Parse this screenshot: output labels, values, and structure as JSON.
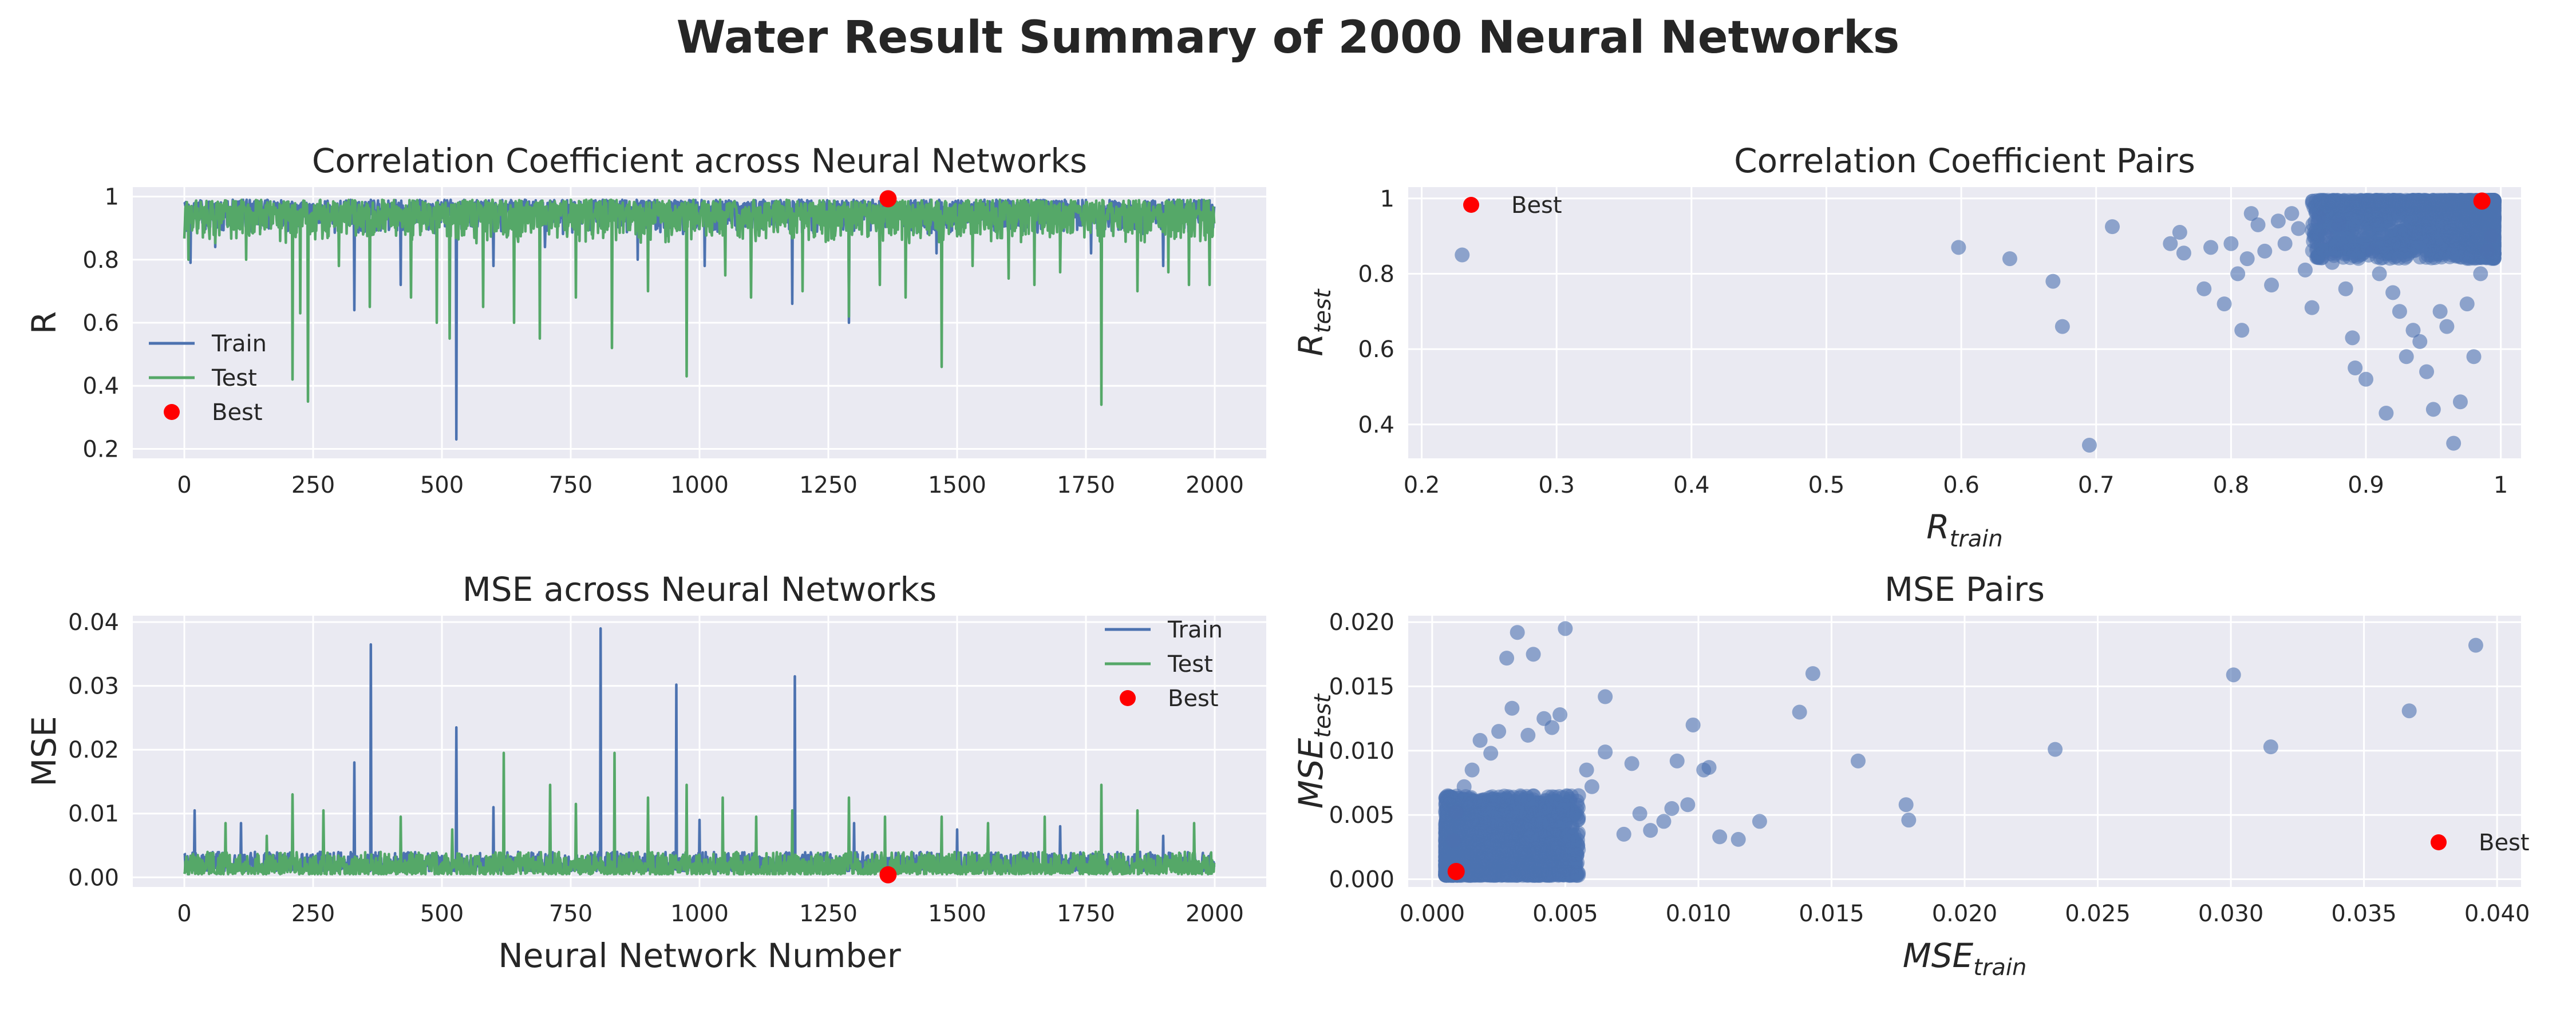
{
  "figure": {
    "suptitle": "Water Result Summary of 2000 Neural Networks"
  },
  "chart_data": [
    {
      "id": "r-line",
      "type": "line",
      "title": "Correlation Coefficient across Neural Networks",
      "xlabel": "",
      "ylabel": "R",
      "xlim": [
        -100,
        2100
      ],
      "ylim": [
        0.17,
        1.03
      ],
      "xticks": [
        0,
        250,
        500,
        750,
        1000,
        1250,
        1500,
        1750,
        2000
      ],
      "yticks": [
        0.2,
        0.4,
        0.6,
        0.8,
        1.0
      ],
      "grid": true,
      "legend": "lower-left",
      "n": 2000,
      "series": [
        {
          "name": "Train",
          "color": "#4c72b0",
          "typical_range": [
            0.88,
            0.99
          ],
          "spikes": [
            [
              12,
              0.79
            ],
            [
              60,
              0.84
            ],
            [
              330,
              0.64
            ],
            [
              420,
              0.72
            ],
            [
              528,
              0.23
            ],
            [
              600,
              0.78
            ],
            [
              700,
              0.84
            ],
            [
              880,
              0.8
            ],
            [
              1010,
              0.78
            ],
            [
              1180,
              0.66
            ],
            [
              1290,
              0.6
            ],
            [
              1460,
              0.82
            ],
            [
              1600,
              0.8
            ],
            [
              1760,
              0.82
            ],
            [
              1900,
              0.78
            ]
          ]
        },
        {
          "name": "Test",
          "color": "#55a868",
          "typical_range": [
            0.85,
            0.99
          ],
          "spikes": [
            [
              8,
              0.8
            ],
            [
              120,
              0.8
            ],
            [
              210,
              0.42
            ],
            [
              225,
              0.63
            ],
            [
              240,
              0.35
            ],
            [
              300,
              0.78
            ],
            [
              360,
              0.65
            ],
            [
              440,
              0.68
            ],
            [
              490,
              0.6
            ],
            [
              515,
              0.55
            ],
            [
              580,
              0.65
            ],
            [
              640,
              0.6
            ],
            [
              690,
              0.55
            ],
            [
              760,
              0.68
            ],
            [
              830,
              0.52
            ],
            [
              900,
              0.7
            ],
            [
              975,
              0.43
            ],
            [
              1050,
              0.75
            ],
            [
              1100,
              0.68
            ],
            [
              1200,
              0.7
            ],
            [
              1290,
              0.62
            ],
            [
              1350,
              0.72
            ],
            [
              1400,
              0.68
            ],
            [
              1470,
              0.46
            ],
            [
              1530,
              0.78
            ],
            [
              1600,
              0.74
            ],
            [
              1650,
              0.72
            ],
            [
              1700,
              0.76
            ],
            [
              1780,
              0.34
            ],
            [
              1850,
              0.7
            ],
            [
              1910,
              0.76
            ],
            [
              1950,
              0.72
            ],
            [
              1990,
              0.72
            ]
          ]
        },
        {
          "name": "Best",
          "color": "#ff0000",
          "kind": "point",
          "x": 1366,
          "y": 0.993
        }
      ]
    },
    {
      "id": "r-pairs",
      "type": "scatter",
      "title": "Correlation Coefficient Pairs",
      "xlabel": "R",
      "xlabel_sub": "train",
      "ylabel": "R",
      "ylabel_sub": "test",
      "xlim": [
        0.19,
        1.015
      ],
      "ylim": [
        0.31,
        1.03
      ],
      "xticks": [
        0.2,
        0.3,
        0.4,
        0.5,
        0.6,
        0.7,
        0.8,
        0.9,
        1.0
      ],
      "yticks": [
        0.4,
        0.6,
        0.8,
        1.0
      ],
      "grid": true,
      "legend": "upper-left",
      "series": [
        {
          "name": "",
          "color": "#4c72b0",
          "points": [
            [
              0.23,
              0.85
            ],
            [
              0.598,
              0.87
            ],
            [
              0.636,
              0.84
            ],
            [
              0.668,
              0.78
            ],
            [
              0.675,
              0.66
            ],
            [
              0.695,
              0.345
            ],
            [
              0.712,
              0.925
            ],
            [
              0.755,
              0.88
            ],
            [
              0.762,
              0.91
            ],
            [
              0.765,
              0.855
            ],
            [
              0.78,
              0.76
            ],
            [
              0.785,
              0.87
            ],
            [
              0.795,
              0.72
            ],
            [
              0.8,
              0.88
            ],
            [
              0.805,
              0.8
            ],
            [
              0.808,
              0.65
            ],
            [
              0.812,
              0.84
            ],
            [
              0.815,
              0.96
            ],
            [
              0.82,
              0.93
            ],
            [
              0.825,
              0.86
            ],
            [
              0.83,
              0.77
            ],
            [
              0.835,
              0.94
            ],
            [
              0.84,
              0.88
            ],
            [
              0.845,
              0.96
            ],
            [
              0.85,
              0.92
            ],
            [
              0.855,
              0.81
            ],
            [
              0.86,
              0.71
            ],
            [
              0.865,
              0.95
            ],
            [
              0.87,
              0.9
            ],
            [
              0.875,
              0.83
            ],
            [
              0.88,
              0.93
            ],
            [
              0.885,
              0.76
            ],
            [
              0.89,
              0.63
            ],
            [
              0.892,
              0.55
            ],
            [
              0.9,
              0.52
            ],
            [
              0.905,
              0.86
            ],
            [
              0.91,
              0.8
            ],
            [
              0.915,
              0.43
            ],
            [
              0.92,
              0.75
            ],
            [
              0.925,
              0.7
            ],
            [
              0.93,
              0.58
            ],
            [
              0.935,
              0.65
            ],
            [
              0.94,
              0.62
            ],
            [
              0.945,
              0.54
            ],
            [
              0.95,
              0.44
            ],
            [
              0.955,
              0.7
            ],
            [
              0.96,
              0.66
            ],
            [
              0.965,
              0.35
            ],
            [
              0.97,
              0.46
            ],
            [
              0.975,
              0.72
            ],
            [
              0.98,
              0.58
            ],
            [
              0.985,
              0.8
            ],
            [
              0.99,
              0.86
            ],
            [
              0.993,
              0.9
            ]
          ],
          "dense_cluster": {
            "x": [
              0.86,
              0.995
            ],
            "y": [
              0.84,
              0.995
            ],
            "count": 1946
          }
        },
        {
          "name": "Best",
          "color": "#ff0000",
          "kind": "point",
          "x": 0.986,
          "y": 0.993
        }
      ]
    },
    {
      "id": "mse-line",
      "type": "line",
      "title": "MSE across Neural Networks",
      "xlabel": "Neural Network Number",
      "ylabel": "MSE",
      "xlim": [
        -100,
        2100
      ],
      "ylim": [
        -0.0015,
        0.041
      ],
      "xticks": [
        0,
        250,
        500,
        750,
        1000,
        1250,
        1500,
        1750,
        2000
      ],
      "yticks": [
        0.0,
        0.01,
        0.02,
        0.03,
        0.04
      ],
      "ytick_labels": [
        "0.00",
        "0.01",
        "0.02",
        "0.03",
        "0.04"
      ],
      "grid": true,
      "legend": "upper-right",
      "n": 2000,
      "series": [
        {
          "name": "Train",
          "color": "#4c72b0",
          "typical_range": [
            0.001,
            0.004
          ],
          "spikes": [
            [
              20,
              0.0105
            ],
            [
              110,
              0.0085
            ],
            [
              330,
              0.018
            ],
            [
              362,
              0.0365
            ],
            [
              528,
              0.0235
            ],
            [
              600,
              0.011
            ],
            [
              808,
              0.039
            ],
            [
              955,
              0.0302
            ],
            [
              1000,
              0.009
            ],
            [
              1185,
              0.0315
            ],
            [
              1300,
              0.0085
            ],
            [
              1500,
              0.0075
            ],
            [
              1700,
              0.008
            ],
            [
              1900,
              0.0065
            ]
          ]
        },
        {
          "name": "Test",
          "color": "#55a868",
          "typical_range": [
            0.0005,
            0.004
          ],
          "spikes": [
            [
              80,
              0.0085
            ],
            [
              160,
              0.0065
            ],
            [
              210,
              0.013
            ],
            [
              270,
              0.0105
            ],
            [
              420,
              0.0095
            ],
            [
              520,
              0.0075
            ],
            [
              620,
              0.0195
            ],
            [
              710,
              0.0145
            ],
            [
              760,
              0.0115
            ],
            [
              835,
              0.0195
            ],
            [
              900,
              0.0125
            ],
            [
              975,
              0.0145
            ],
            [
              1045,
              0.0125
            ],
            [
              1110,
              0.0095
            ],
            [
              1180,
              0.0105
            ],
            [
              1290,
              0.0125
            ],
            [
              1360,
              0.0095
            ],
            [
              1470,
              0.0095
            ],
            [
              1560,
              0.0085
            ],
            [
              1670,
              0.0095
            ],
            [
              1780,
              0.0145
            ],
            [
              1850,
              0.0105
            ],
            [
              1960,
              0.0085
            ]
          ]
        },
        {
          "name": "Best",
          "color": "#ff0000",
          "kind": "point",
          "x": 1366,
          "y": 0.0004
        }
      ]
    },
    {
      "id": "mse-pairs",
      "type": "scatter",
      "title": "MSE Pairs",
      "xlabel": "MSE",
      "xlabel_sub": "train",
      "ylabel": "MSE",
      "ylabel_sub": "test",
      "xlim": [
        -0.0009,
        0.0409
      ],
      "ylim": [
        -0.0006,
        0.0205
      ],
      "xticks": [
        0.0,
        0.005,
        0.01,
        0.015,
        0.02,
        0.025,
        0.03,
        0.035,
        0.04
      ],
      "xtick_labels": [
        "0.000",
        "0.005",
        "0.010",
        "0.015",
        "0.020",
        "0.025",
        "0.030",
        "0.035",
        "0.040"
      ],
      "yticks": [
        0.0,
        0.005,
        0.01,
        0.015,
        0.02
      ],
      "ytick_labels": [
        "0.000",
        "0.005",
        "0.010",
        "0.015",
        "0.020"
      ],
      "grid": true,
      "legend": "lower-right",
      "series": [
        {
          "name": "",
          "color": "#4c72b0",
          "points": [
            [
              0.0392,
              0.0182
            ],
            [
              0.0367,
              0.0131
            ],
            [
              0.0315,
              0.0103
            ],
            [
              0.0301,
              0.0159
            ],
            [
              0.0234,
              0.0101
            ],
            [
              0.0179,
              0.0046
            ],
            [
              0.0178,
              0.0058
            ],
            [
              0.016,
              0.0092
            ],
            [
              0.0143,
              0.016
            ],
            [
              0.0138,
              0.013
            ],
            [
              0.0123,
              0.0045
            ],
            [
              0.0115,
              0.0031
            ],
            [
              0.0108,
              0.0033
            ],
            [
              0.0104,
              0.0087
            ],
            [
              0.0102,
              0.0085
            ],
            [
              0.0098,
              0.012
            ],
            [
              0.0092,
              0.0092
            ],
            [
              0.0096,
              0.0058
            ],
            [
              0.009,
              0.0055
            ],
            [
              0.0087,
              0.0045
            ],
            [
              0.0082,
              0.0038
            ],
            [
              0.0078,
              0.0051
            ],
            [
              0.0075,
              0.009
            ],
            [
              0.0072,
              0.0035
            ],
            [
              0.0065,
              0.0142
            ],
            [
              0.0065,
              0.0099
            ],
            [
              0.006,
              0.0072
            ],
            [
              0.0058,
              0.0085
            ],
            [
              0.0055,
              0.0065
            ],
            [
              0.005,
              0.0195
            ],
            [
              0.0048,
              0.0128
            ],
            [
              0.0045,
              0.0118
            ],
            [
              0.0042,
              0.0125
            ],
            [
              0.0038,
              0.0175
            ],
            [
              0.0036,
              0.0112
            ],
            [
              0.0032,
              0.0192
            ],
            [
              0.003,
              0.0133
            ],
            [
              0.0028,
              0.0172
            ],
            [
              0.0025,
              0.0115
            ],
            [
              0.0022,
              0.0098
            ],
            [
              0.0018,
              0.0108
            ],
            [
              0.0015,
              0.0085
            ],
            [
              0.0012,
              0.0072
            ],
            [
              0.0009,
              0.0052
            ],
            [
              0.0008,
              0.003
            ]
          ],
          "dense_cluster": {
            "x": [
              0.0005,
              0.0055
            ],
            "y": [
              0.0003,
              0.0065
            ],
            "count": 1955
          }
        },
        {
          "name": "Best",
          "color": "#ff0000",
          "kind": "point",
          "x": 0.0009,
          "y": 0.0006
        }
      ]
    }
  ]
}
